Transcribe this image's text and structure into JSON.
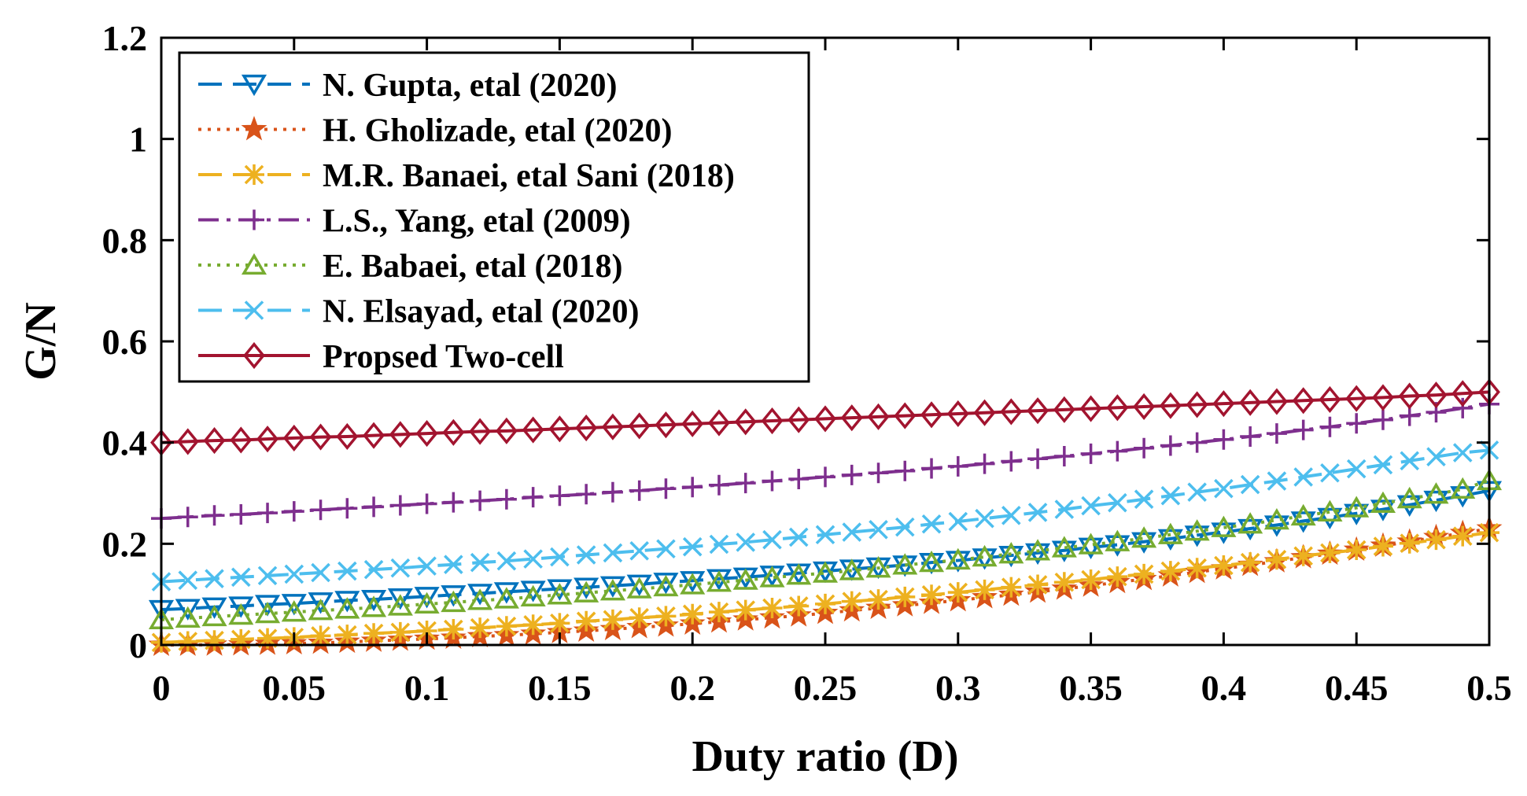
{
  "chart_data": {
    "type": "line",
    "xlabel": "Duty ratio (D)",
    "ylabel": "G/N",
    "xlim": [
      0,
      0.5
    ],
    "ylim": [
      0,
      1.2
    ],
    "x_ticks": [
      0,
      0.05,
      0.1,
      0.15,
      0.2,
      0.25,
      0.3,
      0.35,
      0.4,
      0.45,
      0.5
    ],
    "x_tick_labels": [
      "0",
      "0.05",
      "0.1",
      "0.15",
      "0.2",
      "0.25",
      "0.3",
      "0.35",
      "0.4",
      "0.45",
      "0.5"
    ],
    "y_ticks": [
      0,
      0.2,
      0.4,
      0.6,
      0.8,
      1.0,
      1.2
    ],
    "y_tick_labels": [
      "0",
      "0.2",
      "0.4",
      "0.6",
      "0.8",
      "1",
      "1.2"
    ],
    "grid": false,
    "legend_position": "top-left",
    "x": [
      0,
      0.01,
      0.02,
      0.03,
      0.04,
      0.05,
      0.06,
      0.07,
      0.08,
      0.09,
      0.1,
      0.11,
      0.12,
      0.13,
      0.14,
      0.15,
      0.16,
      0.17,
      0.18,
      0.19,
      0.2,
      0.21,
      0.22,
      0.23,
      0.24,
      0.25,
      0.26,
      0.27,
      0.28,
      0.29,
      0.3,
      0.31,
      0.32,
      0.33,
      0.34,
      0.35,
      0.36,
      0.37,
      0.38,
      0.39,
      0.4,
      0.41,
      0.42,
      0.43,
      0.44,
      0.45,
      0.46,
      0.47,
      0.48,
      0.49,
      0.5
    ],
    "series": [
      {
        "name": "N. Gupta, etal (2020)",
        "color": "#0072BD",
        "line": "dashed",
        "marker": "triangle-down",
        "values": [
          0.07,
          0.072,
          0.075,
          0.077,
          0.08,
          0.082,
          0.085,
          0.088,
          0.09,
          0.093,
          0.096,
          0.099,
          0.102,
          0.105,
          0.108,
          0.111,
          0.114,
          0.117,
          0.12,
          0.124,
          0.127,
          0.131,
          0.134,
          0.138,
          0.142,
          0.146,
          0.15,
          0.154,
          0.158,
          0.163,
          0.167,
          0.172,
          0.177,
          0.182,
          0.187,
          0.193,
          0.198,
          0.204,
          0.21,
          0.217,
          0.223,
          0.23,
          0.237,
          0.245,
          0.252,
          0.26,
          0.268,
          0.277,
          0.286,
          0.295,
          0.305
        ]
      },
      {
        "name": "H. Gholizade, etal (2020)",
        "color": "#D95319",
        "line": "dotted",
        "marker": "star",
        "values": [
          0.0,
          0.0001,
          0.0004,
          0.0009,
          0.002,
          0.003,
          0.004,
          0.006,
          0.008,
          0.01,
          0.012,
          0.014,
          0.017,
          0.019,
          0.022,
          0.025,
          0.028,
          0.031,
          0.035,
          0.038,
          0.042,
          0.046,
          0.05,
          0.054,
          0.058,
          0.063,
          0.068,
          0.073,
          0.078,
          0.083,
          0.088,
          0.094,
          0.099,
          0.105,
          0.111,
          0.117,
          0.124,
          0.13,
          0.137,
          0.144,
          0.151,
          0.158,
          0.165,
          0.173,
          0.18,
          0.188,
          0.196,
          0.204,
          0.213,
          0.221,
          0.23
        ]
      },
      {
        "name": "M.R. Banaei, etal Sani (2018)",
        "color": "#EDB120",
        "line": "dashed",
        "marker": "asterisk",
        "values": [
          0.005,
          0.007,
          0.009,
          0.011,
          0.013,
          0.015,
          0.018,
          0.02,
          0.023,
          0.025,
          0.028,
          0.031,
          0.034,
          0.037,
          0.04,
          0.043,
          0.047,
          0.05,
          0.054,
          0.057,
          0.061,
          0.065,
          0.069,
          0.073,
          0.077,
          0.081,
          0.086,
          0.09,
          0.095,
          0.099,
          0.104,
          0.109,
          0.114,
          0.119,
          0.124,
          0.129,
          0.135,
          0.14,
          0.146,
          0.152,
          0.157,
          0.163,
          0.169,
          0.176,
          0.182,
          0.188,
          0.195,
          0.201,
          0.208,
          0.215,
          0.222
        ]
      },
      {
        "name": "L.S., Yang, etal (2009)",
        "color": "#7E2F8E",
        "line": "dashdot",
        "marker": "plus",
        "values": [
          0.25,
          0.253,
          0.256,
          0.258,
          0.261,
          0.264,
          0.267,
          0.27,
          0.273,
          0.276,
          0.279,
          0.282,
          0.285,
          0.288,
          0.292,
          0.295,
          0.298,
          0.302,
          0.305,
          0.309,
          0.312,
          0.316,
          0.32,
          0.324,
          0.328,
          0.332,
          0.336,
          0.34,
          0.344,
          0.349,
          0.353,
          0.358,
          0.363,
          0.368,
          0.373,
          0.378,
          0.383,
          0.389,
          0.394,
          0.4,
          0.406,
          0.412,
          0.418,
          0.425,
          0.431,
          0.438,
          0.445,
          0.453,
          0.46,
          0.468,
          0.476
        ]
      },
      {
        "name": "E. Babaei, etal (2018)",
        "color": "#77AC30",
        "line": "dotted",
        "marker": "triangle-up",
        "values": [
          0.05,
          0.053,
          0.056,
          0.059,
          0.062,
          0.065,
          0.068,
          0.071,
          0.074,
          0.077,
          0.081,
          0.084,
          0.088,
          0.091,
          0.095,
          0.099,
          0.103,
          0.107,
          0.111,
          0.115,
          0.119,
          0.124,
          0.128,
          0.133,
          0.138,
          0.142,
          0.147,
          0.152,
          0.158,
          0.163,
          0.168,
          0.174,
          0.18,
          0.186,
          0.192,
          0.198,
          0.204,
          0.211,
          0.218,
          0.225,
          0.232,
          0.239,
          0.247,
          0.255,
          0.263,
          0.271,
          0.28,
          0.289,
          0.298,
          0.308,
          0.325
        ]
      },
      {
        "name": "N. Elsayad, etal (2020)",
        "color": "#4DBEEE",
        "line": "dashed",
        "marker": "cross",
        "values": [
          0.125,
          0.128,
          0.131,
          0.134,
          0.137,
          0.14,
          0.143,
          0.146,
          0.149,
          0.152,
          0.156,
          0.159,
          0.163,
          0.166,
          0.17,
          0.174,
          0.178,
          0.182,
          0.186,
          0.19,
          0.194,
          0.199,
          0.203,
          0.208,
          0.213,
          0.218,
          0.223,
          0.228,
          0.233,
          0.239,
          0.244,
          0.25,
          0.256,
          0.262,
          0.268,
          0.275,
          0.281,
          0.288,
          0.295,
          0.302,
          0.309,
          0.317,
          0.324,
          0.332,
          0.34,
          0.348,
          0.356,
          0.364,
          0.372,
          0.38,
          0.385
        ]
      },
      {
        "name": "Propsed Two-cell",
        "color": "#A2142F",
        "line": "solid",
        "marker": "diamond",
        "values": [
          0.4,
          0.402,
          0.404,
          0.405,
          0.407,
          0.409,
          0.411,
          0.412,
          0.414,
          0.416,
          0.418,
          0.42,
          0.422,
          0.423,
          0.425,
          0.427,
          0.429,
          0.431,
          0.433,
          0.435,
          0.437,
          0.439,
          0.441,
          0.443,
          0.445,
          0.447,
          0.449,
          0.451,
          0.453,
          0.455,
          0.457,
          0.459,
          0.461,
          0.463,
          0.465,
          0.467,
          0.469,
          0.471,
          0.473,
          0.475,
          0.477,
          0.479,
          0.481,
          0.483,
          0.485,
          0.487,
          0.489,
          0.492,
          0.494,
          0.497,
          0.5
        ]
      }
    ]
  }
}
